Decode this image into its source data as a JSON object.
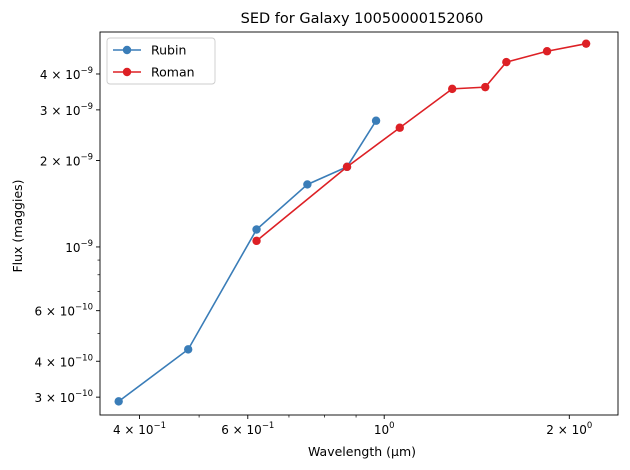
{
  "chart_data": {
    "type": "line",
    "title": "SED for Galaxy 10050000152060",
    "xlabel": "Wavelength (µm)",
    "ylabel": "Flux (maggies)",
    "xscale": "log",
    "yscale": "log",
    "xlim": [
      0.345,
      2.4
    ],
    "ylim": [
      2.6e-10,
      5.6e-09
    ],
    "grid": false,
    "legend": "top-left",
    "x_ticks": [
      {
        "value": 0.4,
        "mantissa": "4 × 10",
        "exp": "−1"
      },
      {
        "value": 0.6,
        "mantissa": "6 × 10",
        "exp": "−1"
      },
      {
        "value": 1.0,
        "mantissa": "10",
        "exp": "0"
      },
      {
        "value": 2.0,
        "mantissa": "2 × 10",
        "exp": "0"
      }
    ],
    "y_ticks": [
      {
        "value": 3e-10,
        "mantissa": "3 × 10",
        "exp": "−10"
      },
      {
        "value": 4e-10,
        "mantissa": "4 × 10",
        "exp": "−10"
      },
      {
        "value": 6e-10,
        "mantissa": "6 × 10",
        "exp": "−10"
      },
      {
        "value": 1e-09,
        "mantissa": "10",
        "exp": "−9"
      },
      {
        "value": 2e-09,
        "mantissa": "2 × 10",
        "exp": "−9"
      },
      {
        "value": 3e-09,
        "mantissa": "3 × 10",
        "exp": "−9"
      },
      {
        "value": 4e-09,
        "mantissa": "4 × 10",
        "exp": "−9"
      }
    ],
    "series": [
      {
        "name": "Rubin",
        "color": "#3a7db8",
        "x": [
          0.37,
          0.48,
          0.62,
          0.75,
          0.87,
          0.97
        ],
        "y": [
          2.9e-10,
          4.4e-10,
          1.15e-09,
          1.65e-09,
          1.9e-09,
          2.75e-09
        ]
      },
      {
        "name": "Roman",
        "color": "#dd2025",
        "x": [
          0.62,
          0.87,
          1.06,
          1.29,
          1.46,
          1.58,
          1.84,
          2.13
        ],
        "y": [
          1.05e-09,
          1.9e-09,
          2.6e-09,
          3.55e-09,
          3.6e-09,
          4.4e-09,
          4.8e-09,
          5.1e-09
        ]
      }
    ]
  }
}
